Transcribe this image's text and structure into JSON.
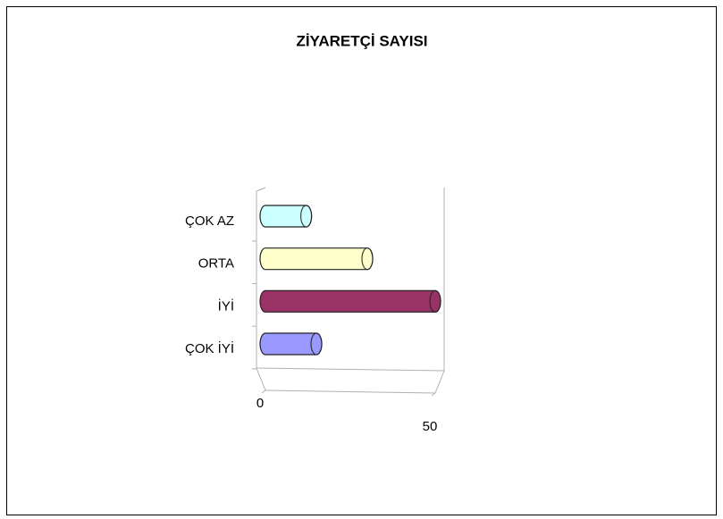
{
  "chart_data": {
    "type": "bar",
    "orientation": "horizontal",
    "title": "ZİYARETÇİ SAYISI",
    "categories": [
      "ÇOK İYİ",
      "İYİ",
      "ORTA",
      "ÇOK AZ"
    ],
    "values": [
      15,
      50,
      30,
      12
    ],
    "colors": [
      "#9999ff",
      "#993366",
      "#ffffcc",
      "#ccffff"
    ],
    "xlim": [
      0,
      50
    ],
    "xticks": [
      0,
      50
    ],
    "grid": false
  }
}
